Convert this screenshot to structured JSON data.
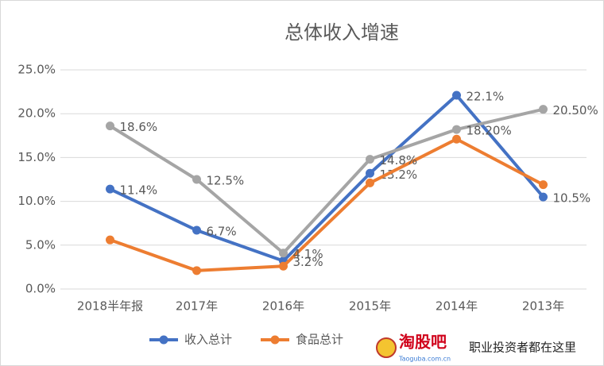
{
  "chart_data": {
    "type": "line",
    "title": "总体收入增速",
    "categories": [
      "2018半年报",
      "2017年",
      "2016年",
      "2015年",
      "2014年",
      "2013年"
    ],
    "series": [
      {
        "name": "收入总计",
        "color": "#4472c4",
        "values": [
          11.4,
          6.7,
          3.2,
          13.2,
          22.1,
          10.5
        ],
        "value_labels": [
          "11.4%",
          "6.7%",
          "3.2%",
          "13.2%",
          "22.1%",
          "10.5%"
        ]
      },
      {
        "name": "食品总计",
        "color": "#ed7d31",
        "values": [
          5.6,
          2.1,
          2.6,
          12.1,
          17.1,
          11.9
        ]
      },
      {
        "color": "#a5a5a5",
        "values": [
          18.6,
          12.5,
          4.1,
          14.8,
          18.2,
          20.5
        ],
        "value_labels": [
          "18.6%",
          "12.5%",
          "4.1%",
          "14.8%",
          "18.20%",
          "20.50%"
        ]
      }
    ],
    "ylim": [
      0,
      25
    ],
    "yticks": [
      {
        "value": 0,
        "label": "0.0%"
      },
      {
        "value": 5,
        "label": "5.0%"
      },
      {
        "value": 10,
        "label": "10.0%"
      },
      {
        "value": 15,
        "label": "15.0%"
      },
      {
        "value": 20,
        "label": "20.0%"
      },
      {
        "value": 25,
        "label": "25.0%"
      }
    ],
    "grid": true,
    "legend": "bottom"
  },
  "watermark": {
    "logo": "淘股吧",
    "site": "Taoguba.com.cn",
    "slogan": "职业投资者都在这里"
  }
}
